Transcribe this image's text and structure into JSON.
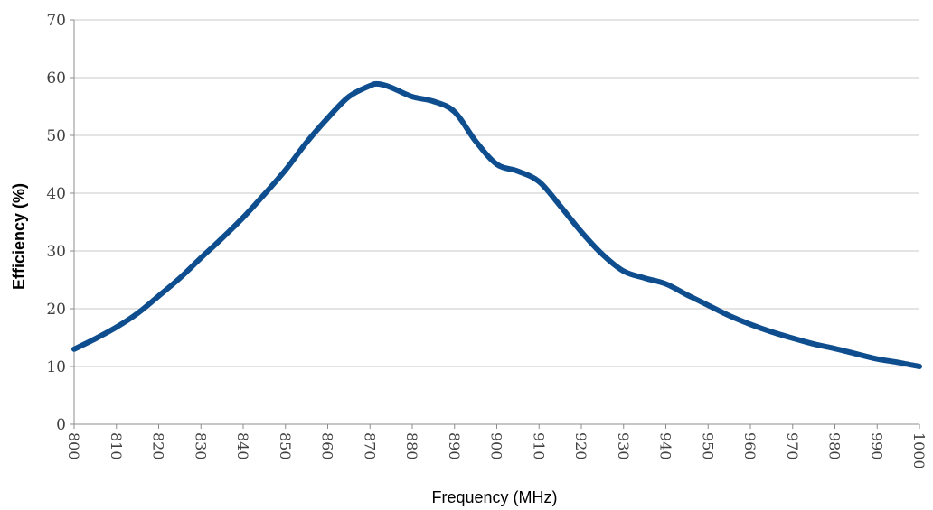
{
  "chart_data": {
    "type": "line",
    "xlabel": "Frequency (MHz)",
    "ylabel": "Efficiency (%)",
    "xlim": [
      800,
      1000
    ],
    "ylim": [
      0,
      70
    ],
    "x_ticks": [
      "800",
      "810",
      "820",
      "830",
      "840",
      "850",
      "860",
      "870",
      "880",
      "890",
      "900",
      "910",
      "920",
      "930",
      "940",
      "950",
      "960",
      "970",
      "980",
      "990",
      "1000"
    ],
    "y_ticks": [
      "0",
      "10",
      "20",
      "30",
      "40",
      "50",
      "60",
      "70"
    ],
    "grid": "horizontal",
    "series": [
      {
        "color": "#0e4d8e",
        "x": [
          800,
          805,
          810,
          815,
          820,
          825,
          830,
          835,
          840,
          845,
          850,
          855,
          860,
          865,
          870,
          872,
          875,
          880,
          885,
          890,
          895,
          900,
          905,
          910,
          915,
          920,
          925,
          930,
          935,
          940,
          945,
          950,
          955,
          960,
          965,
          970,
          975,
          980,
          985,
          990,
          995,
          1000
        ],
        "y": [
          13,
          14.8,
          16.8,
          19.2,
          22.2,
          25.3,
          28.8,
          32.2,
          35.8,
          39.8,
          44,
          48.8,
          53,
          56.7,
          58.6,
          58.9,
          58.3,
          56.7,
          55.9,
          54.1,
          49,
          45,
          43.8,
          42,
          37.8,
          33.3,
          29.4,
          26.5,
          25.3,
          24.3,
          22.4,
          20.6,
          18.8,
          17.3,
          16,
          14.9,
          13.9,
          13.1,
          12.2,
          11.3,
          10.7,
          10
        ]
      }
    ]
  }
}
